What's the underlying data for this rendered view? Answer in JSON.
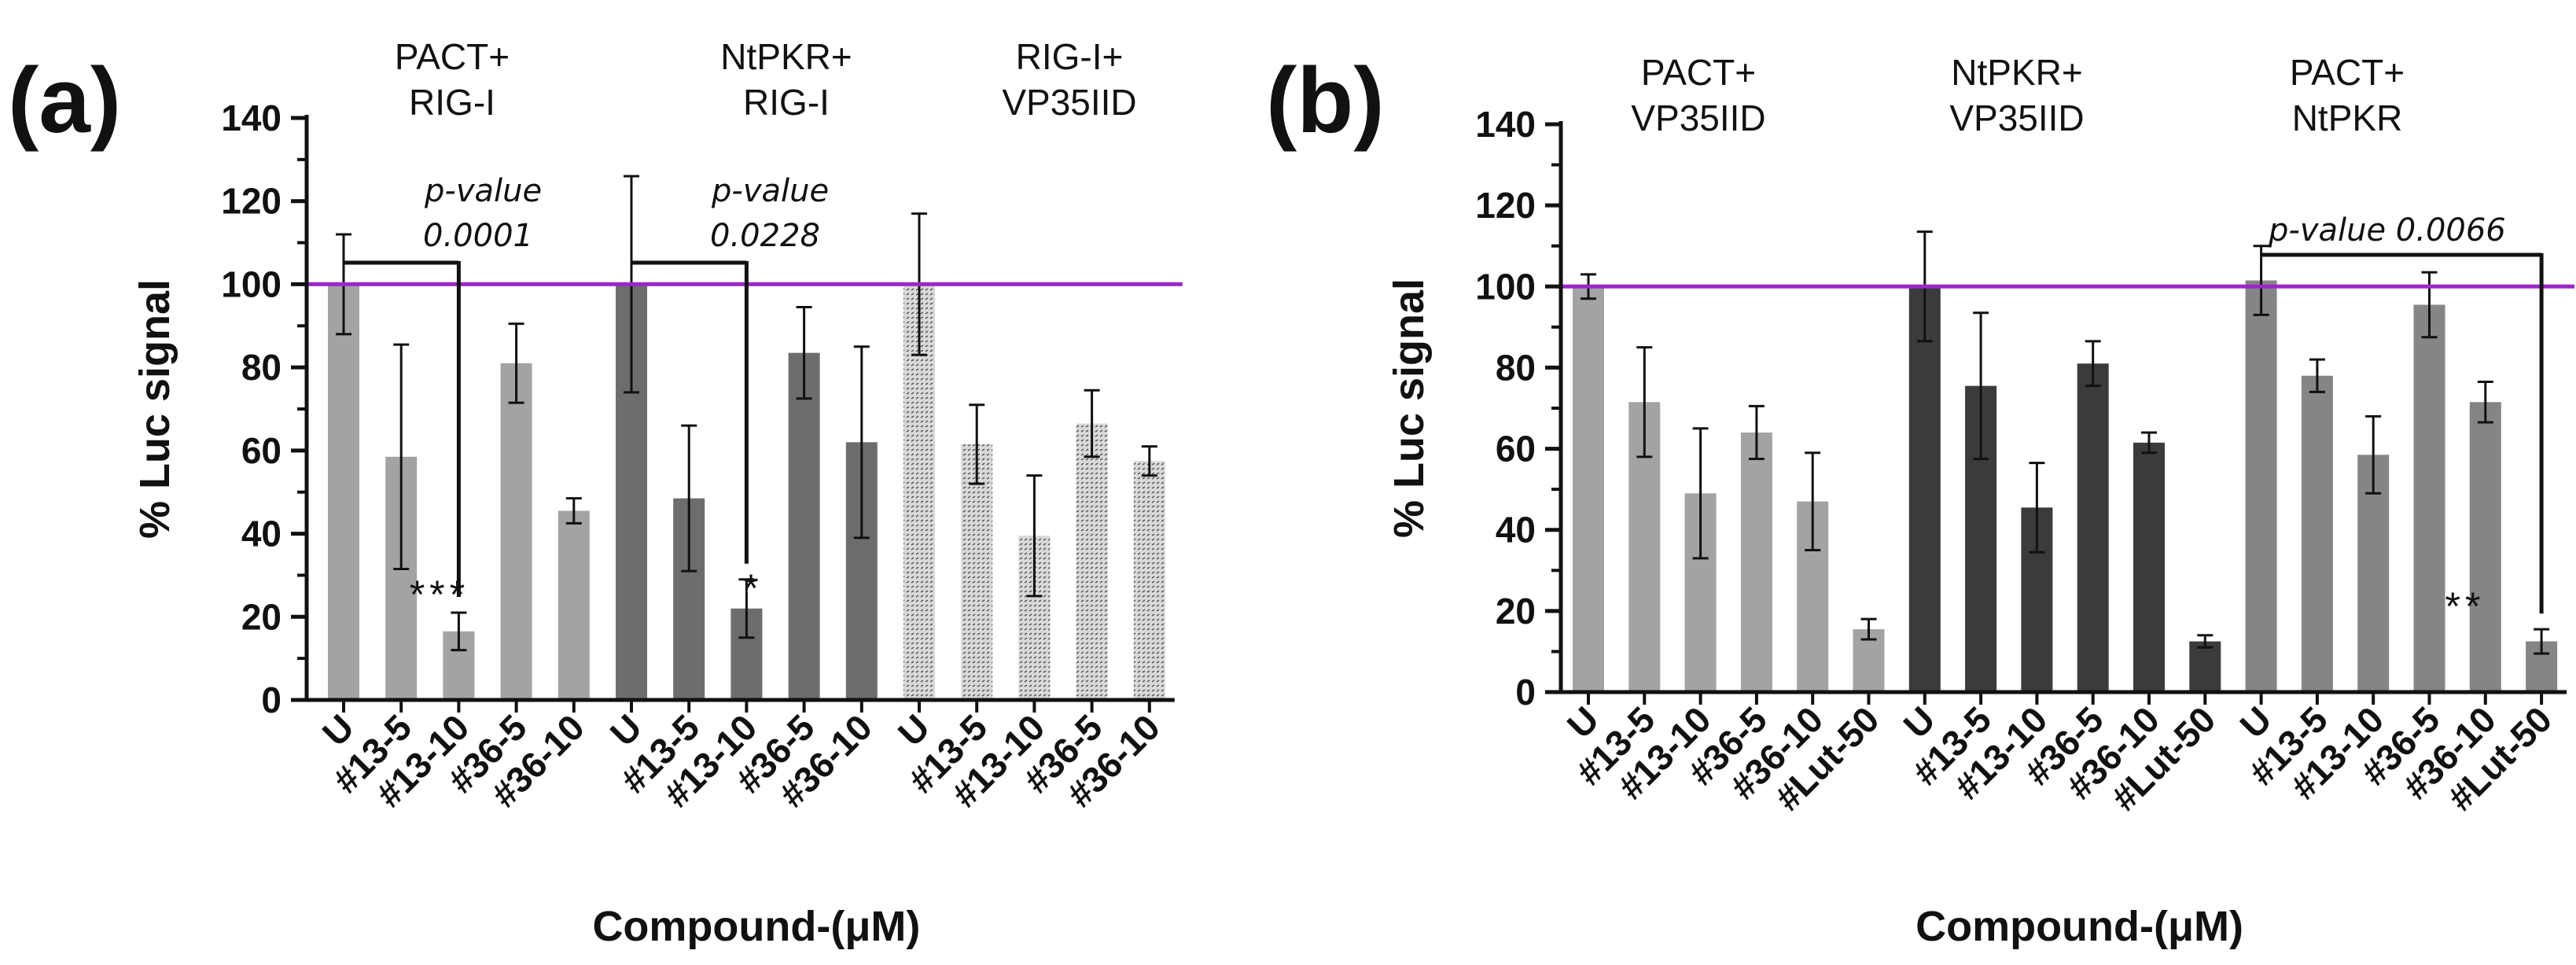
{
  "chart_data": [
    {
      "panel": "(a)",
      "type": "bar",
      "ylabel": "% Luc signal",
      "xlabel": "Compound-(μM)",
      "ylim": [
        0,
        140
      ],
      "yticks": [
        0,
        20,
        40,
        60,
        80,
        100,
        120,
        140
      ],
      "reference_line": 100,
      "reference_color": "#9b27c9",
      "groups": [
        {
          "title": [
            "PACT+",
            "RIG-I"
          ],
          "color": "#a3a3a5",
          "pattern": false,
          "categories": [
            "U",
            "#13-5",
            "#13-10",
            "#36-5",
            "#36-10"
          ],
          "values": [
            100,
            58.5,
            16.5,
            81,
            45.5
          ],
          "errors": [
            12,
            27,
            4.5,
            9.5,
            3
          ]
        },
        {
          "title": [
            "NtPKR+",
            "RIG-I"
          ],
          "color": "#6d6d6f",
          "pattern": false,
          "categories": [
            "U",
            "#13-5",
            "#13-10",
            "#36-5",
            "#36-10"
          ],
          "values": [
            100,
            48.5,
            22,
            83.5,
            62
          ],
          "errors": [
            26,
            17.5,
            7,
            11,
            23
          ]
        },
        {
          "title": [
            "RIG-I+",
            "VP35IID"
          ],
          "color": "#d8d8d8",
          "pattern": true,
          "categories": [
            "U",
            "#13-5",
            "#13-10",
            "#36-5",
            "#36-10"
          ],
          "values": [
            100,
            61.5,
            39.5,
            66.5,
            57.5
          ],
          "errors": [
            17,
            9.5,
            14.5,
            8,
            3.5
          ]
        }
      ],
      "significance": [
        {
          "label": "p-value",
          "value": "0.0001",
          "stars": "***"
        },
        {
          "label": "p-value",
          "value": "0.0228",
          "stars": "*"
        }
      ]
    },
    {
      "panel": "(b)",
      "type": "bar",
      "ylabel": "% Luc signal",
      "xlabel": "Compound-(μM)",
      "ylim": [
        0,
        140
      ],
      "yticks": [
        0,
        20,
        40,
        60,
        80,
        100,
        120,
        140
      ],
      "reference_line": 100,
      "reference_color": "#9b27c9",
      "groups": [
        {
          "title": [
            "PACT+",
            "VP35IID"
          ],
          "color": "#a3a3a5",
          "pattern": false,
          "categories": [
            "U",
            "#13-5",
            "#13-10",
            "#36-5",
            "#36-10",
            "#Lut-50"
          ],
          "values": [
            100,
            71.5,
            49,
            64,
            47,
            15.5
          ],
          "errors": [
            3,
            13.5,
            16,
            6.5,
            12,
            2.5
          ]
        },
        {
          "title": [
            "NtPKR+",
            "VP35IID"
          ],
          "color": "#3b3b3d",
          "pattern": false,
          "categories": [
            "U",
            "#13-5",
            "#13-10",
            "#36-5",
            "#36-10",
            "#Lut-50"
          ],
          "values": [
            100,
            75.5,
            45.5,
            81,
            61.5,
            12.5
          ],
          "errors": [
            13.5,
            18,
            11,
            5.5,
            2.5,
            1.5
          ]
        },
        {
          "title": [
            "PACT+",
            "NtPKR"
          ],
          "color": "#858587",
          "pattern": false,
          "categories": [
            "U",
            "#13-5",
            "#13-10",
            "#36-5",
            "#36-10",
            "#Lut-50"
          ],
          "values": [
            101.5,
            78,
            58.5,
            95.5,
            71.5,
            12.5
          ],
          "errors": [
            8.5,
            4,
            9.5,
            8,
            5,
            3
          ]
        }
      ],
      "significance": [
        {
          "label": "p-value",
          "value": "0.0066",
          "stars": "**"
        }
      ]
    }
  ]
}
